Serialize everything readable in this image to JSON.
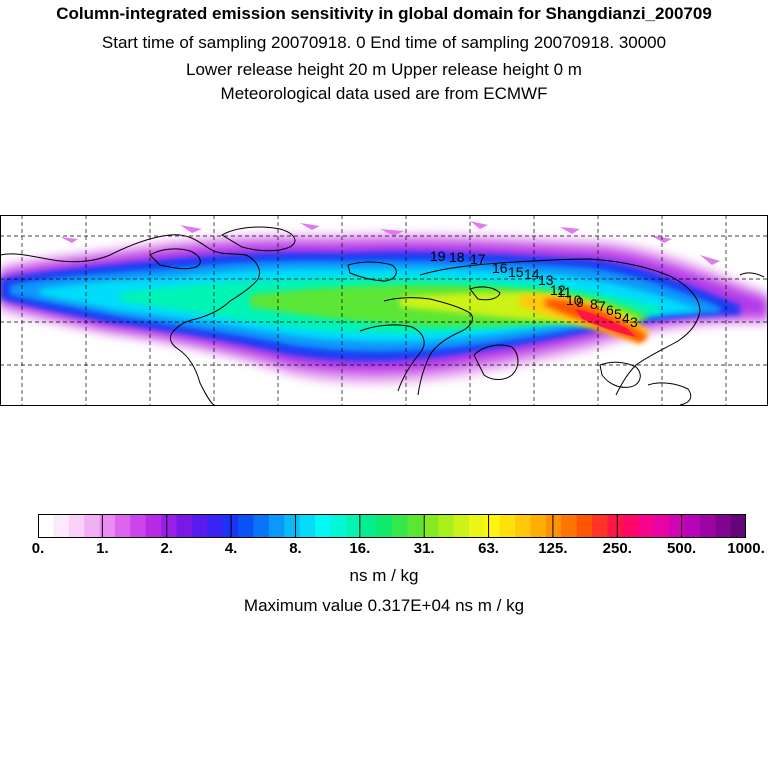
{
  "header": {
    "title": "Column-integrated emission sensitivity in global domain for Shangdianzi_200709",
    "sampling_line": "Start time of sampling 20070918.     0     End time of sampling 20070918. 30000",
    "release_line": "Lower release height   20 m          Upper release height    0 m",
    "met_line": "Meteorological data used are from ECMWF"
  },
  "map": {
    "domain": "global",
    "trajectory_labels": [
      "19",
      "18",
      "17",
      "16",
      "15",
      "14",
      "13",
      "12",
      "11",
      "10",
      "9",
      "8",
      "7",
      "6",
      "5",
      "4",
      "3"
    ]
  },
  "colorbar": {
    "tick_labels": [
      "0.",
      "1.",
      "2.",
      "4.",
      "8.",
      "16.",
      "31.",
      "63.",
      "125.",
      "250.",
      "500.",
      "1000."
    ],
    "colors": [
      "#ffffff",
      "#fde9fd",
      "#f8d0f8",
      "#f2b0f4",
      "#ea8cf0",
      "#dd64ec",
      "#cc44ea",
      "#b82ae8",
      "#9a1ee8",
      "#7a18e8",
      "#5a1cee",
      "#3a24f4",
      "#1c34f6",
      "#0a52f6",
      "#0a74f8",
      "#0a98fa",
      "#08bcfa",
      "#06dcfa",
      "#04f8f4",
      "#04f8d8",
      "#04f4b4",
      "#04ee90",
      "#10ea6c",
      "#34e84c",
      "#5ce634",
      "#84ea24",
      "#aaee1c",
      "#ccf218",
      "#ecf614",
      "#fff40e",
      "#ffe00a",
      "#ffc808",
      "#ffae06",
      "#ff9204",
      "#ff7402",
      "#ff5402",
      "#ff3426",
      "#ff1646",
      "#ff086a",
      "#f8048c",
      "#e804a4",
      "#d004b4",
      "#b804b8",
      "#9c04a4",
      "#800490",
      "#640478"
    ],
    "units": "ns m / kg"
  },
  "max_value_text": "Maximum value  0.317E+04 ns m / kg"
}
